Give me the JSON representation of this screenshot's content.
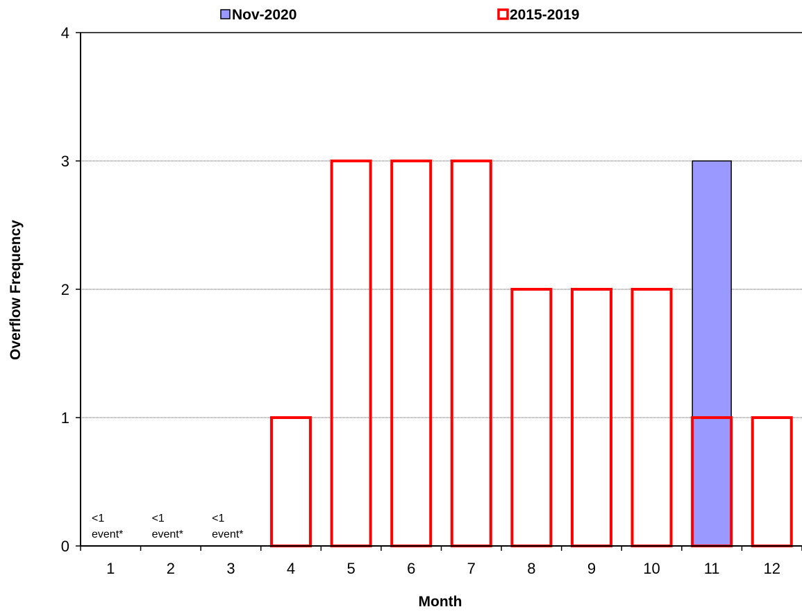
{
  "chart_data": {
    "type": "bar",
    "title": "",
    "xlabel": "Month",
    "ylabel": "Overflow Frequency",
    "categories": [
      "1",
      "2",
      "3",
      "4",
      "5",
      "6",
      "7",
      "8",
      "9",
      "10",
      "11",
      "12"
    ],
    "ylim": [
      0,
      4
    ],
    "yticks": [
      "0",
      "1",
      "2",
      "3",
      "4"
    ],
    "grid": "horizontal dotted",
    "legend_position": "top",
    "series": [
      {
        "name": "Nov-2020",
        "style": "filled",
        "fill_color": "#9999ff",
        "edge_color": "#000000",
        "values": [
          null,
          null,
          null,
          null,
          null,
          null,
          null,
          null,
          null,
          null,
          3,
          null
        ]
      },
      {
        "name": "2015-2019",
        "style": "outline",
        "fill_color": "#ffffff",
        "edge_color": "#ff0000",
        "values": [
          0,
          0,
          0,
          1,
          3,
          3,
          3,
          2,
          2,
          2,
          1,
          1
        ]
      }
    ],
    "annotations": [
      {
        "category": "1",
        "line1": "<1",
        "line2": "event*"
      },
      {
        "category": "2",
        "line1": "<1",
        "line2": "event*"
      },
      {
        "category": "3",
        "line1": "<1",
        "line2": "event*"
      }
    ]
  }
}
